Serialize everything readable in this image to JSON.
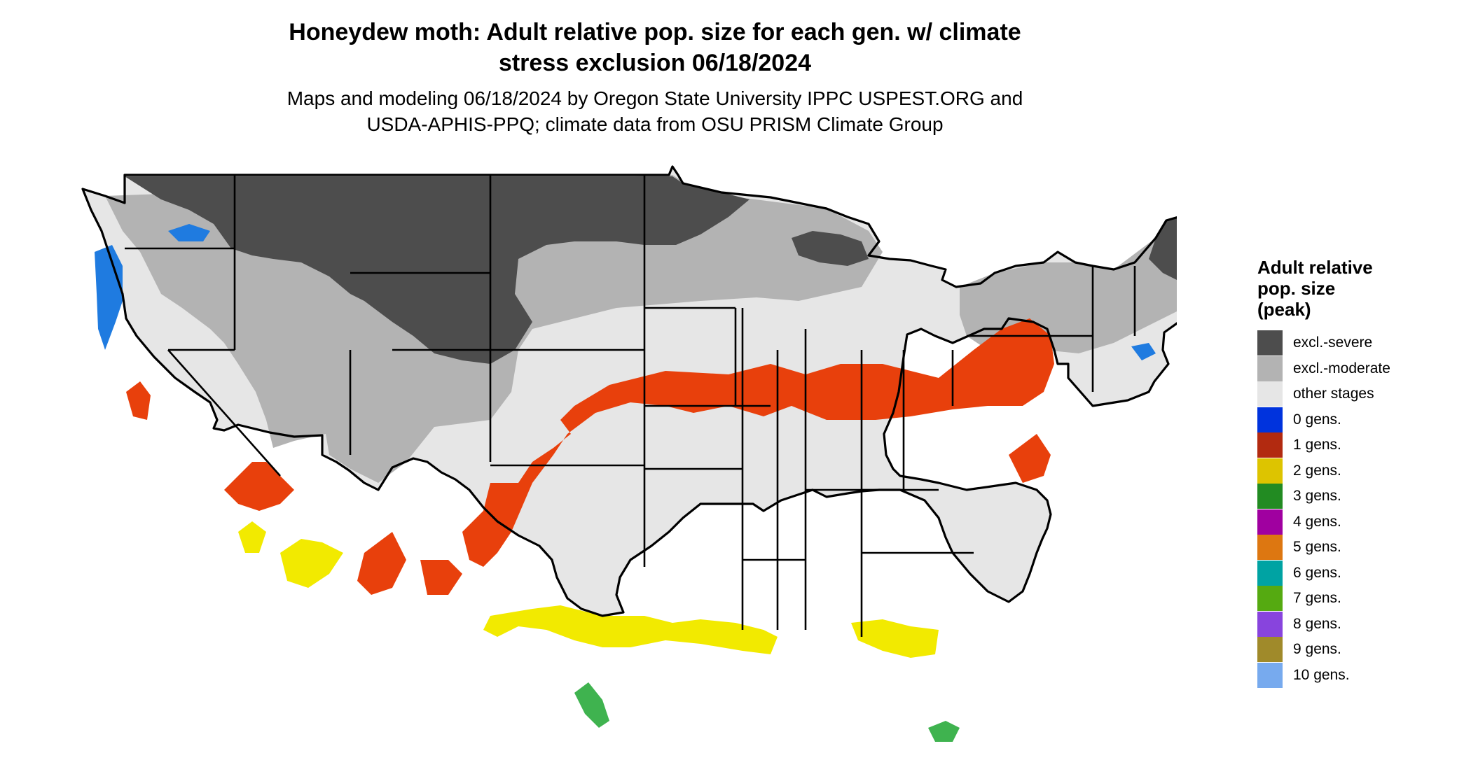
{
  "title_lines": [
    "Honeydew moth: Adult relative pop. size for each gen. w/ climate",
    "stress exclusion 06/18/2024"
  ],
  "subtitle_lines": [
    "Maps and modeling 06/18/2024 by Oregon State University IPPC USPEST.ORG and",
    "USDA-APHIS-PPQ; climate data from OSU PRISM Climate Group"
  ],
  "legend": {
    "title_lines": [
      "Adult relative",
      "pop. size",
      "(peak)"
    ],
    "items": [
      {
        "label": "excl.-severe",
        "color": "#4d4d4d"
      },
      {
        "label": "excl.-moderate",
        "color": "#b3b3b3"
      },
      {
        "label": "other stages",
        "color": "#e6e6e6"
      },
      {
        "label": "0 gens.",
        "color": "#0033dd"
      },
      {
        "label": "1 gens.",
        "color": "#b22a10"
      },
      {
        "label": "2 gens.",
        "color": "#ddc400"
      },
      {
        "label": "3 gens.",
        "color": "#228b22"
      },
      {
        "label": "4 gens.",
        "color": "#a000a0"
      },
      {
        "label": "5 gens.",
        "color": "#dd7711"
      },
      {
        "label": "6 gens.",
        "color": "#00a3a3"
      },
      {
        "label": "7 gens.",
        "color": "#55aa11"
      },
      {
        "label": "8 gens.",
        "color": "#8844dd"
      },
      {
        "label": "9 gens.",
        "color": "#a08a2a"
      },
      {
        "label": "10 gens.",
        "color": "#77aaee"
      }
    ]
  },
  "map_colors": {
    "severe": "#4d4d4d",
    "moderate": "#b3b3b3",
    "other": "#e6e6e6",
    "gen1_display": "#e8400c",
    "gen2_display": "#f2ea00",
    "gen3_display": "#3fb34f",
    "gen0_display": "#1f7be0",
    "border": "#000000"
  }
}
